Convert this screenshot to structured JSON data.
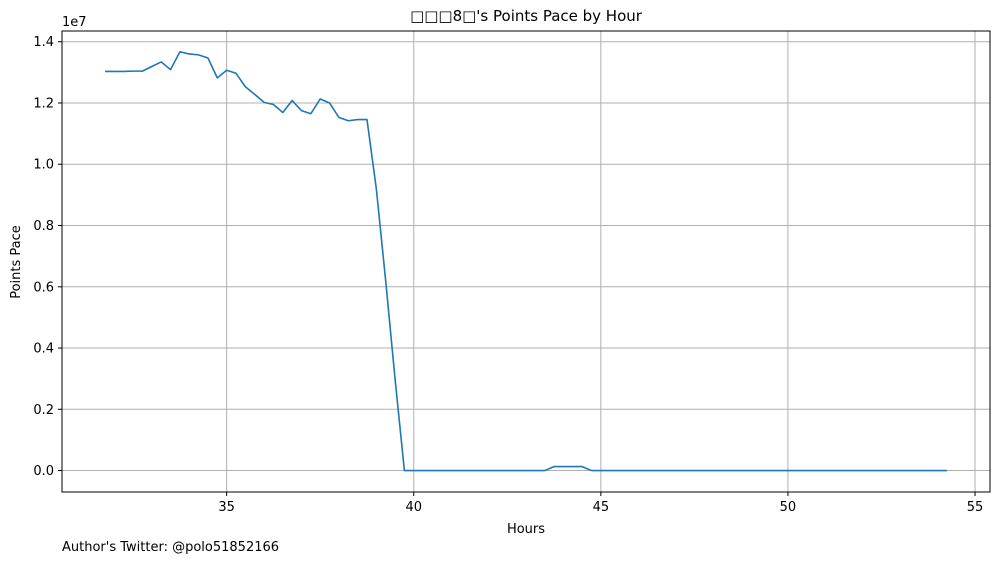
{
  "chart_data": {
    "type": "line",
    "title": "□□□8□'s Points Pace by Hour",
    "xlabel": "Hours",
    "ylabel": "Points Pace",
    "y_offset_label": "1e7",
    "y_scale_factor": 10000000,
    "xlim": [
      30.6,
      55.4
    ],
    "ylim": [
      -700000,
      14350000
    ],
    "x_ticks": [
      35,
      40,
      45,
      50,
      55
    ],
    "y_ticks": [
      0.0,
      0.2,
      0.4,
      0.6,
      0.8,
      1.0,
      1.2,
      1.4
    ],
    "y_tick_labels": [
      "0.0",
      "0.2",
      "0.4",
      "0.6",
      "0.8",
      "1.0",
      "1.2",
      "1.4"
    ],
    "grid": true,
    "line_color": "#1f77b4",
    "series": [
      {
        "x": [
          31.75,
          32.0,
          32.25,
          32.5,
          32.75,
          33.0,
          33.25,
          33.5,
          33.75,
          34.0,
          34.25,
          34.5,
          34.75,
          35.0,
          35.25,
          35.5,
          35.75,
          36.0,
          36.25,
          36.5,
          36.75,
          37.0,
          37.25,
          37.5,
          37.75,
          38.0,
          38.25,
          38.5,
          38.75,
          39.0,
          39.25,
          39.5,
          39.75,
          40.0,
          40.5,
          41.0,
          41.5,
          42.0,
          42.5,
          43.0,
          43.5,
          43.75,
          44.0,
          44.25,
          44.5,
          44.75,
          45.0,
          45.5,
          46.0,
          46.5,
          47.0,
          47.5,
          48.0,
          48.5,
          49.0,
          49.5,
          50.0,
          50.5,
          51.0,
          51.5,
          52.0,
          52.5,
          53.0,
          53.5,
          54.0,
          54.25
        ],
        "values": [
          13030000,
          13030000,
          13030000,
          13040000,
          13040000,
          13190000,
          13340000,
          13090000,
          13670000,
          13600000,
          13570000,
          13470000,
          12820000,
          13070000,
          12970000,
          12530000,
          12280000,
          12020000,
          11950000,
          11690000,
          12080000,
          11750000,
          11650000,
          12130000,
          12000000,
          11530000,
          11420000,
          11460000,
          11460000,
          9200000,
          6200000,
          3000000,
          0,
          0,
          0,
          0,
          0,
          0,
          0,
          0,
          0,
          130000,
          130000,
          130000,
          130000,
          0,
          0,
          0,
          0,
          0,
          0,
          0,
          0,
          0,
          0,
          0,
          0,
          0,
          0,
          0,
          0,
          0,
          0,
          0,
          0,
          0
        ]
      }
    ]
  },
  "footer": {
    "credit": "Author's Twitter: @polo51852166"
  }
}
